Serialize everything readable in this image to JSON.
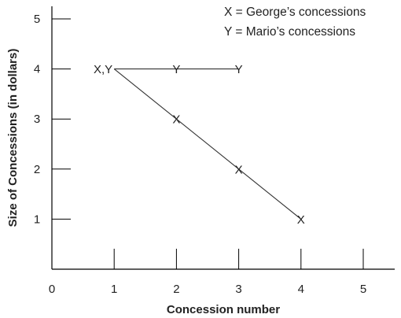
{
  "chart_data": {
    "type": "line",
    "xlabel": "Concession number",
    "ylabel": "Size of Concessions (in dollars)",
    "xlim": [
      0,
      5
    ],
    "ylim": [
      0,
      5
    ],
    "x_ticks": [
      "0",
      "1",
      "2",
      "3",
      "4",
      "5"
    ],
    "y_ticks": [
      "1",
      "2",
      "3",
      "4",
      "5"
    ],
    "legend": [
      "X = George’s concessions",
      "Y = Mario’s concessions"
    ],
    "legend_position": "top-right",
    "grid": false,
    "series": [
      {
        "marker": "X",
        "points": [
          {
            "x": 1,
            "y": 4
          },
          {
            "x": 2,
            "y": 3
          },
          {
            "x": 3,
            "y": 2
          },
          {
            "x": 4,
            "y": 1
          }
        ]
      },
      {
        "marker": "Y",
        "points": [
          {
            "x": 1,
            "y": 4
          },
          {
            "x": 2,
            "y": 4
          },
          {
            "x": 3,
            "y": 4
          }
        ]
      }
    ],
    "shared_point_label": "X,Y",
    "colors": {
      "line": "#333333",
      "text": "#222222"
    }
  }
}
